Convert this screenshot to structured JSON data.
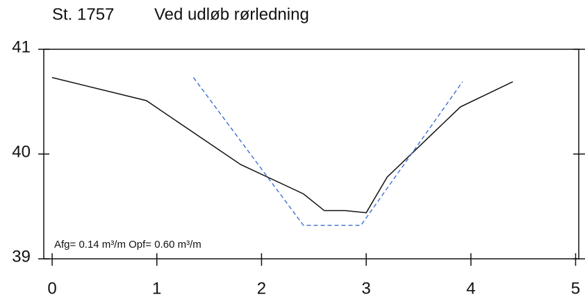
{
  "chart_data": {
    "type": "line",
    "title": "St. 1757",
    "subtitle": "Ved udløb rørledning",
    "annotation": "Afg= 0.14 m³/m  Opf= 0.60 m³/m",
    "series": [
      {
        "color": "#111111",
        "dash": "solid",
        "x": [
          0,
          0.9,
          1.8,
          2.4,
          2.6,
          2.8,
          3.0,
          3.2,
          3.9,
          4.4
        ],
        "values": [
          40.73,
          40.51,
          39.9,
          39.62,
          39.46,
          39.46,
          39.44,
          39.78,
          40.45,
          40.69
        ]
      },
      {
        "color": "#3a6fd0",
        "dash": "dashed",
        "x": [
          1.35,
          2.4,
          2.95,
          3.92
        ],
        "values": [
          40.73,
          39.32,
          39.32,
          40.69
        ]
      }
    ],
    "xlim": [
      -0.08,
      5.03
    ],
    "xticks": [
      0,
      1,
      2,
      3,
      4,
      5
    ],
    "ylim": [
      39,
      41
    ],
    "yticks": [
      39,
      40,
      41
    ]
  }
}
